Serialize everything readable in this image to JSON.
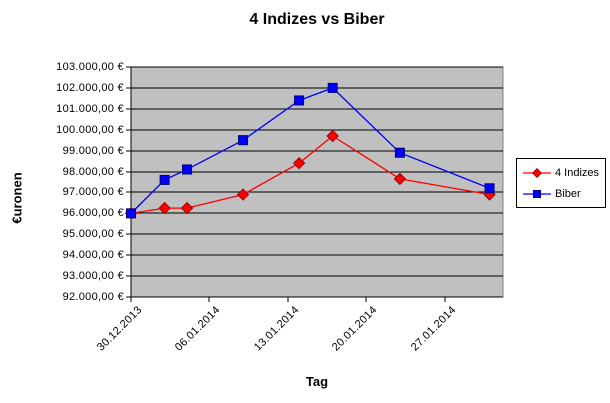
{
  "chart_data": {
    "type": "line",
    "title": "4 Indizes vs Biber",
    "xlabel": "Tag",
    "ylabel": "€uronen",
    "grid": true,
    "plot_bg": "#c0c0c0",
    "gridline_color": "#000000",
    "legend_position": "right",
    "ylim": [
      92000,
      103000
    ],
    "y_tick_step": 1000,
    "y_ticks": [
      {
        "value": 103000,
        "label": "103.000,00 €"
      },
      {
        "value": 102000,
        "label": "102.000,00 €"
      },
      {
        "value": 101000,
        "label": "101.000,00 €"
      },
      {
        "value": 100000,
        "label": "100.000,00 €"
      },
      {
        "value": 99000,
        "label": "99.000,00 €"
      },
      {
        "value": 98000,
        "label": "98.000,00 €"
      },
      {
        "value": 97000,
        "label": "97.000,00 €"
      },
      {
        "value": 96000,
        "label": "96.000,00 €"
      },
      {
        "value": 95000,
        "label": "95.000,00 €"
      },
      {
        "value": 94000,
        "label": "94.000,00 €"
      },
      {
        "value": 93000,
        "label": "93.000,00 €"
      },
      {
        "value": 92000,
        "label": "92.000,00 €"
      }
    ],
    "xlim_days": [
      0,
      33.2
    ],
    "x_ticks": [
      {
        "day": 0,
        "label": "30.12.2013"
      },
      {
        "day": 7,
        "label": "06.01.2014"
      },
      {
        "day": 14,
        "label": "13.01.2014"
      },
      {
        "day": 21,
        "label": "20.01.2014"
      },
      {
        "day": 28,
        "label": "27.01.2014"
      }
    ],
    "series": [
      {
        "name": "4 Indizes",
        "color": "#ff0000",
        "marker": "diamond",
        "marker_edge": "#a00000",
        "x_days": [
          0,
          3,
          5,
          10,
          15,
          18,
          24,
          32
        ],
        "values": [
          96000,
          96250,
          96250,
          96900,
          98400,
          99700,
          97650,
          96900
        ]
      },
      {
        "name": "Biber",
        "color": "#0000ff",
        "marker": "square",
        "marker_edge": "#000080",
        "x_days": [
          0,
          3,
          5,
          10,
          15,
          18,
          24,
          32
        ],
        "values": [
          96000,
          97600,
          98100,
          99500,
          101400,
          102000,
          98900,
          97200
        ]
      }
    ]
  }
}
